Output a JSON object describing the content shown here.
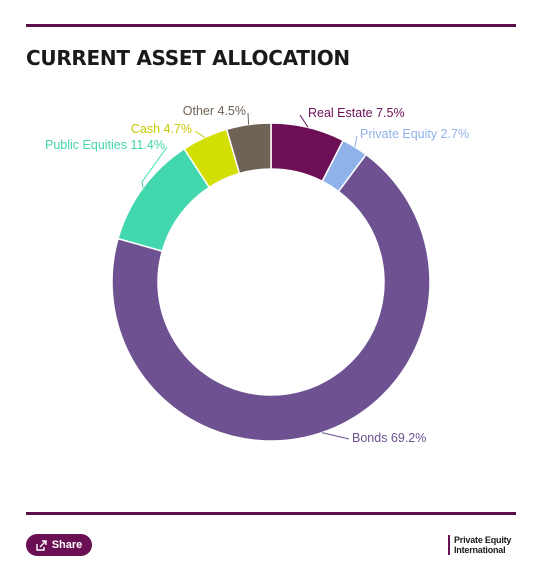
{
  "title": "CURRENT ASSET ALLOCATION",
  "footer": {
    "share_label": "Share",
    "brand_line1": "Private Equity",
    "brand_line2": "International"
  },
  "chart_data": {
    "type": "pie",
    "donut": true,
    "labels": [
      "Real Estate",
      "Private Equity",
      "Bonds",
      "Public Equities",
      "Cash",
      "Other"
    ],
    "values": [
      7.5,
      2.7,
      69.2,
      11.4,
      4.7,
      4.5
    ],
    "colors": [
      "#6c0f57",
      "#8fb2ea",
      "#6d5190",
      "#43d7ad",
      "#d3df02",
      "#6f6256"
    ],
    "label_colors": [
      "#6c0f57",
      "#8fb2ea",
      "#6d5190",
      "#43d7ad",
      "#c8c800",
      "#6f6256"
    ],
    "data_labels": [
      "Real Estate 7.5%",
      "Private Equity 2.7%",
      "Bonds 69.2%",
      "Public Equities 11.4%",
      "Cash 4.7%",
      "Other 4.5%"
    ],
    "start": "top",
    "direction": "clockwise"
  }
}
